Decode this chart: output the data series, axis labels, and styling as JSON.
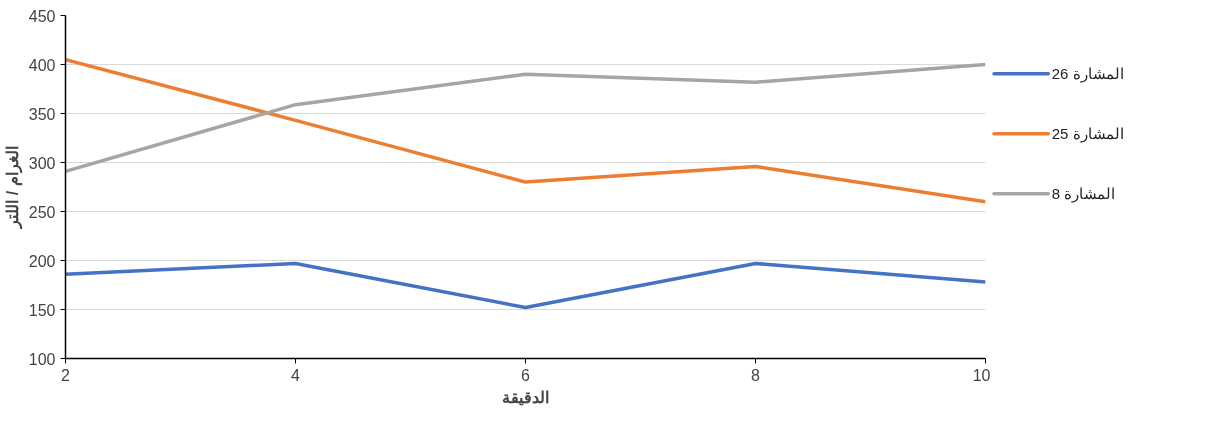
{
  "chart_data": {
    "type": "line",
    "xlabel": "الدقيقة",
    "ylabel": "الغرام / اللتر",
    "x": [
      2,
      4,
      6,
      8,
      10
    ],
    "series": [
      {
        "name": "المشارة 26",
        "color": "#4472c4",
        "values": [
          186,
          197,
          152,
          197,
          178
        ]
      },
      {
        "name": "المشارة 25",
        "color": "#ed7d31",
        "values": [
          405,
          343,
          280,
          296,
          260
        ]
      },
      {
        "name": "المشارة 8",
        "color": "#a5a5a5",
        "values": [
          291,
          359,
          390,
          382,
          400
        ]
      }
    ],
    "xlim": [
      2,
      10
    ],
    "xticks": [
      2,
      4,
      6,
      8,
      10
    ],
    "ylim": [
      100,
      450
    ],
    "yticks": [
      100,
      150,
      200,
      250,
      300,
      350,
      400,
      450
    ],
    "grid": "y",
    "legend": "right",
    "marker": "none",
    "line_style": "solid"
  }
}
